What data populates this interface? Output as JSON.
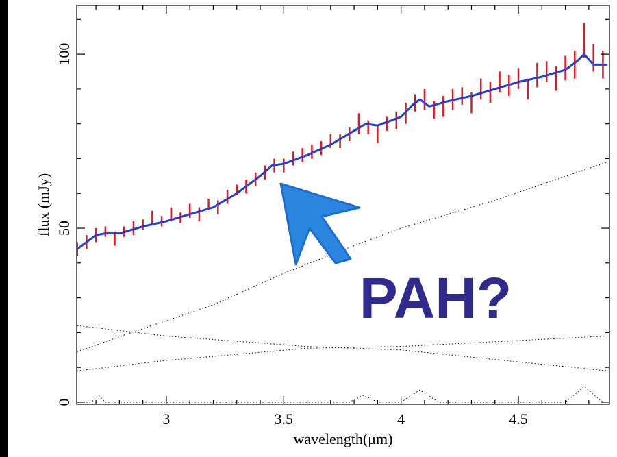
{
  "chart_data": {
    "type": "spectrum",
    "xlabel": "wavelength(μm)",
    "ylabel": "flux (mJy)",
    "annotation": "PAH?",
    "xlim": [
      2.618,
      4.888
    ],
    "ylim": [
      -0.6,
      114
    ],
    "xticks": [
      3,
      3.5,
      4,
      4.5
    ],
    "yticks": [
      0,
      50,
      100
    ],
    "xminorticks": [
      2.7,
      2.8,
      2.9,
      3.1,
      3.2,
      3.3,
      3.4,
      3.6,
      3.7,
      3.8,
      3.9,
      4.1,
      4.2,
      4.3,
      4.4,
      4.6,
      4.7,
      4.8
    ],
    "yminorticks": [
      10,
      20,
      30,
      40,
      60,
      70,
      80,
      90,
      110
    ],
    "series": [
      {
        "kind": "points",
        "color": "#e8141e",
        "x": [
          2.62,
          2.66,
          2.7,
          2.74,
          2.78,
          2.82,
          2.86,
          2.9,
          2.94,
          2.98,
          3.02,
          3.06,
          3.1,
          3.14,
          3.18,
          3.22,
          3.26,
          3.3,
          3.34,
          3.38,
          3.42,
          3.46,
          3.5,
          3.54,
          3.58,
          3.62,
          3.66,
          3.7,
          3.74,
          3.78,
          3.82,
          3.86,
          3.9,
          3.94,
          3.98,
          4.02,
          4.06,
          4.1,
          4.14,
          4.18,
          4.22,
          4.26,
          4.3,
          4.34,
          4.38,
          4.42,
          4.46,
          4.5,
          4.54,
          4.58,
          4.62,
          4.66,
          4.7,
          4.74,
          4.78,
          4.82,
          4.86
        ],
        "values": [
          44,
          46,
          48,
          49,
          47,
          49,
          50,
          51,
          53,
          52,
          54,
          53,
          55,
          54,
          57,
          56,
          59,
          61,
          62,
          64,
          66,
          68,
          68,
          70,
          71,
          72,
          73,
          75,
          75,
          77,
          80,
          79,
          77,
          80,
          81,
          83,
          86,
          87,
          84,
          85,
          87,
          88,
          86,
          90,
          89,
          92,
          91,
          93,
          90,
          94,
          95,
          93,
          96,
          97,
          104,
          99,
          97
        ],
        "errors": [
          2,
          2,
          2,
          1.5,
          2,
          1.5,
          2,
          1.5,
          2,
          1.5,
          2,
          1.5,
          2,
          2,
          1.5,
          2,
          2,
          1.5,
          2,
          2,
          2,
          2,
          2,
          2,
          2,
          2,
          2,
          2,
          2,
          2,
          3,
          2,
          2.5,
          2,
          2.5,
          3,
          2.5,
          3,
          2.5,
          3,
          3,
          2.5,
          3,
          3,
          3,
          3,
          3,
          3,
          3,
          3.5,
          3,
          3.5,
          3.5,
          4,
          5,
          4,
          4
        ]
      },
      {
        "kind": "line",
        "color": "#1f3ede",
        "width": 3,
        "x": [
          2.62,
          2.66,
          2.7,
          2.74,
          2.8,
          2.9,
          3.0,
          3.1,
          3.2,
          3.3,
          3.4,
          3.45,
          3.5,
          3.6,
          3.7,
          3.8,
          3.85,
          3.9,
          4.0,
          4.05,
          4.08,
          4.12,
          4.2,
          4.3,
          4.4,
          4.5,
          4.6,
          4.7,
          4.75,
          4.78,
          4.82,
          4.88
        ],
        "values": [
          44,
          46,
          48,
          48.5,
          48.5,
          50.5,
          52,
          54,
          56,
          60,
          65,
          68,
          68.5,
          71,
          74,
          78,
          80,
          79.5,
          82,
          85.5,
          87,
          85,
          86.5,
          88,
          90,
          92,
          93.5,
          95.5,
          98,
          100,
          97,
          97
        ]
      },
      {
        "kind": "dotted",
        "color": "#000000",
        "width": 1,
        "x": [
          2.62,
          2.85,
          3.2,
          3.5,
          3.8,
          4.0,
          4.4,
          4.88
        ],
        "values": [
          14.5,
          20,
          28,
          37,
          45,
          50,
          58,
          69
        ]
      },
      {
        "kind": "dotted",
        "color": "#000000",
        "width": 1,
        "x": [
          2.62,
          3.0,
          3.6,
          4.0,
          4.88
        ],
        "values": [
          22,
          19,
          16,
          15,
          9
        ]
      },
      {
        "kind": "dotted",
        "color": "#000000",
        "width": 1,
        "x": [
          2.62,
          3.0,
          3.6,
          4.0,
          4.88
        ],
        "values": [
          9,
          12,
          15.5,
          16,
          19
        ]
      },
      {
        "kind": "dotted",
        "color": "#000000",
        "width": 1,
        "x": [
          2.62,
          2.68,
          2.71,
          2.74,
          3.78,
          3.84,
          3.9,
          4.0,
          4.08,
          4.16,
          4.7,
          4.78,
          4.86
        ],
        "values": [
          0,
          0,
          2,
          0,
          0,
          2,
          0,
          0,
          3.5,
          0,
          0,
          4.5,
          0
        ]
      }
    ]
  }
}
